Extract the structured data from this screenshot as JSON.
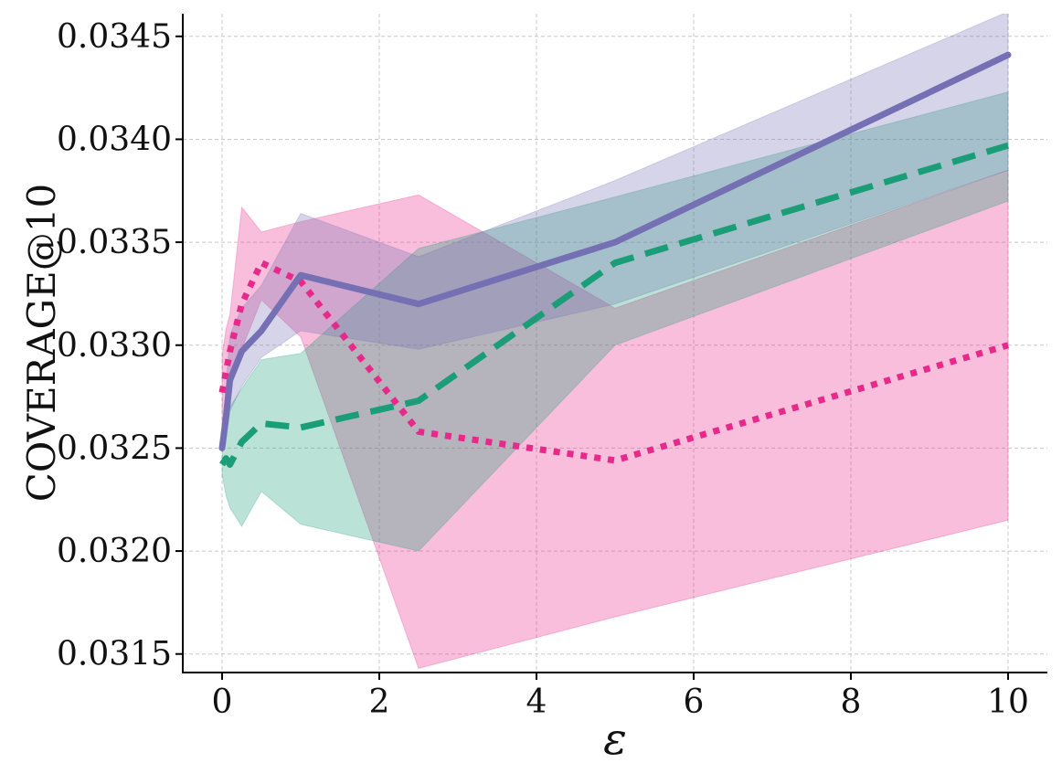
{
  "chart_data": {
    "type": "line",
    "title": "",
    "xlabel": "ε",
    "ylabel": "COVERAGE@10",
    "xlim": [
      -0.5,
      10.5
    ],
    "ylim": [
      0.03141,
      0.03461
    ],
    "x_ticks": [
      0,
      2,
      4,
      6,
      8,
      10
    ],
    "x_tick_labels": [
      "0",
      "2",
      "4",
      "6",
      "8",
      "10"
    ],
    "y_ticks": [
      0.0315,
      0.032,
      0.0325,
      0.033,
      0.0335,
      0.034,
      0.0345
    ],
    "y_tick_labels": [
      "0.0315",
      "0.0320",
      "0.0325",
      "0.0330",
      "0.0335",
      "0.0340",
      "0.0345"
    ],
    "grid": true,
    "series": [
      {
        "name": "series-purple-solid",
        "color": "#7570b3",
        "linestyle": "solid",
        "x": [
          0,
          0.05,
          0.1,
          0.25,
          0.5,
          1,
          2.5,
          5,
          10
        ],
        "y": [
          0.0325,
          0.03265,
          0.03283,
          0.03297,
          0.03307,
          0.03334,
          0.0332,
          0.0335,
          0.03441
        ],
        "lower": [
          0.03248,
          0.03255,
          0.03268,
          0.0328,
          0.03294,
          0.03307,
          0.03298,
          0.0332,
          0.03385
        ],
        "upper": [
          0.03253,
          0.0328,
          0.03305,
          0.03318,
          0.03329,
          0.03364,
          0.03343,
          0.0338,
          0.03462
        ]
      },
      {
        "name": "series-green-dashed",
        "color": "#1b9e77",
        "linestyle": "dashed",
        "x": [
          0,
          0.05,
          0.1,
          0.25,
          0.5,
          1,
          2.5,
          5,
          10
        ],
        "y": [
          0.03242,
          0.03245,
          0.03242,
          0.03253,
          0.03262,
          0.0326,
          0.03273,
          0.0334,
          0.03397
        ],
        "lower": [
          0.03237,
          0.03227,
          0.03221,
          0.03212,
          0.03229,
          0.03213,
          0.032,
          0.033,
          0.0337
        ],
        "upper": [
          0.0325,
          0.03262,
          0.0327,
          0.03279,
          0.03293,
          0.03296,
          0.03347,
          0.03372,
          0.03423
        ]
      },
      {
        "name": "series-pink-dotted",
        "color": "#e7298a",
        "linestyle": "dotted",
        "x": [
          0,
          0.05,
          0.1,
          0.25,
          0.5,
          1,
          2.5,
          5,
          10
        ],
        "y": [
          0.03277,
          0.03287,
          0.03297,
          0.0332,
          0.0334,
          0.03331,
          0.03258,
          0.03244,
          0.033
        ],
        "lower": [
          0.0326,
          0.03268,
          0.03278,
          0.03298,
          0.03322,
          0.03304,
          0.03143,
          0.03168,
          0.03215
        ],
        "upper": [
          0.03295,
          0.03308,
          0.03315,
          0.03367,
          0.03355,
          0.0336,
          0.03373,
          0.03318,
          0.03385
        ]
      }
    ]
  }
}
